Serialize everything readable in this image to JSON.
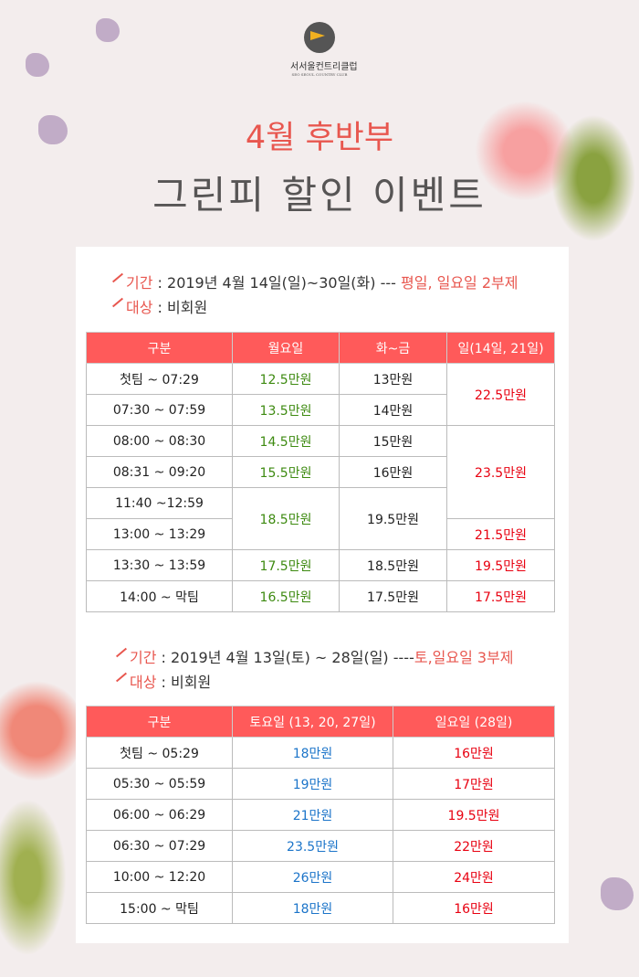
{
  "logo": {
    "name_kr": "서서울컨트리클럽",
    "name_en": "SEO SEOUL COUNTRY CLUB"
  },
  "title": {
    "line1": "4월 후반부",
    "line2": "그린피 할인 이벤트"
  },
  "colors": {
    "accent": "#ff5a5a",
    "title_red": "#e8574f",
    "weekday_price": "#3d8a10",
    "sunday_price": "#e80010",
    "saturday_price": "#1b74c9"
  },
  "section1": {
    "period_label": "기간",
    "period_text": " : 2019년 4월 14일(일)~30일(화) --- ",
    "period_note": "평일, 일요일 2부제",
    "target_label": "대상",
    "target_text": " : 비회원",
    "headers": [
      "구분",
      "월요일",
      "화~금",
      "일(14일, 21일)"
    ],
    "rows": [
      [
        "첫팀 ~ 07:29",
        "12.5만원",
        "13만원",
        "22.5만원"
      ],
      [
        "07:30 ~ 07:59",
        "13.5만원",
        "14만원"
      ],
      [
        "08:00 ~ 08:30",
        "14.5만원",
        "15만원",
        "23.5만원"
      ],
      [
        "08:31 ~ 09:20",
        "15.5만원",
        "16만원"
      ],
      [
        "11:40 ~12:59",
        "18.5만원",
        "19.5만원"
      ],
      [
        "13:00 ~ 13:29",
        "21.5만원"
      ],
      [
        "13:30 ~ 13:59",
        "17.5만원",
        "18.5만원",
        "19.5만원"
      ],
      [
        "14:00 ~ 막팀",
        "16.5만원",
        "17.5만원",
        "17.5만원"
      ]
    ]
  },
  "section2": {
    "period_label": "기간",
    "period_text": " : 2019년 4월 13일(토) ~ 28일(일) ----",
    "period_note": "토,일요일 3부제",
    "target_label": "대상",
    "target_text": " : 비회원",
    "headers": [
      "구분",
      "토요일 (13, 20, 27일)",
      "일요일 (28일)"
    ],
    "rows": [
      [
        "첫팀 ~ 05:29",
        "18만원",
        "16만원"
      ],
      [
        "05:30 ~ 05:59",
        "19만원",
        "17만원"
      ],
      [
        "06:00 ~ 06:29",
        "21만원",
        "19.5만원"
      ],
      [
        "06:30 ~ 07:29",
        "23.5만원",
        "22만원"
      ],
      [
        "10:00 ~ 12:20",
        "26만원",
        "24만원"
      ],
      [
        "15:00 ~ 막팀",
        "18만원",
        "16만원"
      ]
    ]
  }
}
